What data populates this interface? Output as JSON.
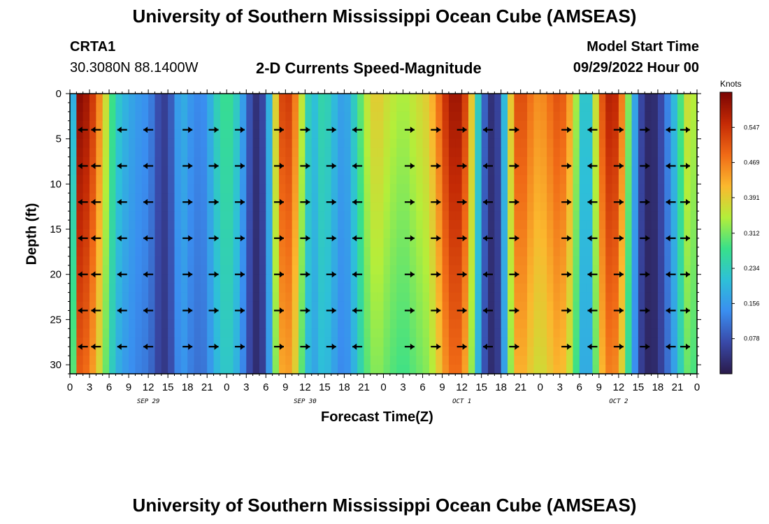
{
  "header": {
    "title": "University of Southern Mississippi Ocean Cube (AMSEAS)",
    "station_id": "CRTA1",
    "station_coords": "30.3080N  88.1400W",
    "plot_title": "2-D Currents Speed-Magnitude",
    "model_start_label": "Model Start Time",
    "model_start_value": "09/29/2022 Hour 00"
  },
  "footer": {
    "title": "University of Southern Mississippi Ocean Cube (AMSEAS)"
  },
  "colorbar": {
    "unit": "Knots",
    "ticks": [
      "0.547",
      "0.469",
      "0.391",
      "0.312",
      "0.234",
      "0.156",
      "0.078"
    ],
    "tick_values": [
      0.547,
      0.469,
      0.391,
      0.312,
      0.234,
      0.156,
      0.078
    ],
    "range": [
      0.0,
      0.625
    ],
    "colors": [
      "#2a1a4a",
      "#3949a8",
      "#3a8ef0",
      "#2ec0d8",
      "#38e08a",
      "#b4ee3a",
      "#fbb82e",
      "#f06a16",
      "#c42a05",
      "#7a0403"
    ]
  },
  "chart_data": {
    "type": "heatmap",
    "title": "2-D Currents Speed-Magnitude",
    "xlabel": "Forecast Time(Z)",
    "ylabel": "Depth (ft)",
    "xlim": [
      0,
      96
    ],
    "ylim": [
      31,
      0
    ],
    "x_tick_values": [
      0,
      3,
      6,
      9,
      12,
      15,
      18,
      21,
      24,
      27,
      30,
      33,
      36,
      39,
      42,
      45,
      48,
      51,
      54,
      57,
      60,
      63,
      66,
      69,
      72,
      75,
      78,
      81,
      84,
      87,
      90,
      93,
      96
    ],
    "x_tick_labels": [
      "0",
      "3",
      "6",
      "9",
      "12",
      "15",
      "18",
      "21",
      "0",
      "3",
      "6",
      "9",
      "12",
      "15",
      "18",
      "21",
      "0",
      "3",
      "6",
      "9",
      "12",
      "15",
      "18",
      "21",
      "0",
      "3",
      "6",
      "9",
      "12",
      "15",
      "18",
      "21",
      "0"
    ],
    "y_tick_values": [
      0,
      5,
      10,
      15,
      20,
      25,
      30
    ],
    "y_tick_labels": [
      "0",
      "5",
      "10",
      "15",
      "20",
      "25",
      "30"
    ],
    "day_labels": [
      {
        "text": "SEP 29",
        "x": 12
      },
      {
        "text": "SEP 30",
        "x": 36
      },
      {
        "text": "OCT 1",
        "x": 60
      },
      {
        "text": "OCT 2",
        "x": 84
      }
    ],
    "speed_profile_knots": {
      "hour": [
        0,
        1,
        2,
        3,
        4,
        5,
        6,
        7,
        8,
        9,
        10,
        11,
        12,
        13,
        14,
        15,
        16,
        17,
        18,
        19,
        20,
        21,
        22,
        23,
        24,
        25,
        26,
        27,
        28,
        29,
        30,
        31,
        32,
        33,
        34,
        35,
        36,
        37,
        38,
        39,
        40,
        41,
        42,
        43,
        44,
        45,
        46,
        47,
        48,
        49,
        50,
        51,
        52,
        53,
        54,
        55,
        56,
        57,
        58,
        59,
        60,
        61,
        62,
        63,
        64,
        65,
        66,
        67,
        68,
        69,
        70,
        71,
        72,
        73,
        74,
        75,
        76,
        77,
        78,
        79,
        80,
        81,
        82,
        83,
        84,
        85,
        86,
        87,
        88,
        89,
        90,
        91,
        92,
        93,
        94,
        95,
        96
      ],
      "speed": [
        0.1,
        0.62,
        0.6,
        0.58,
        0.5,
        0.42,
        0.32,
        0.24,
        0.2,
        0.18,
        0.16,
        0.15,
        0.14,
        0.1,
        0.05,
        0.06,
        0.12,
        0.2,
        0.16,
        0.14,
        0.13,
        0.15,
        0.22,
        0.26,
        0.28,
        0.26,
        0.2,
        0.12,
        0.04,
        0.03,
        0.1,
        0.28,
        0.5,
        0.55,
        0.52,
        0.42,
        0.3,
        0.18,
        0.24,
        0.26,
        0.22,
        0.18,
        0.15,
        0.2,
        0.26,
        0.34,
        0.38,
        0.4,
        0.38,
        0.36,
        0.35,
        0.34,
        0.35,
        0.37,
        0.38,
        0.4,
        0.45,
        0.52,
        0.58,
        0.6,
        0.58,
        0.48,
        0.32,
        0.14,
        0.05,
        0.02,
        0.1,
        0.3,
        0.5,
        0.53,
        0.5,
        0.46,
        0.45,
        0.47,
        0.5,
        0.52,
        0.48,
        0.4,
        0.28,
        0.16,
        0.28,
        0.46,
        0.56,
        0.58,
        0.54,
        0.4,
        0.24,
        0.1,
        0.03,
        0.02,
        0.04,
        0.1,
        0.16,
        0.24,
        0.34,
        0.4,
        0.3
      ],
      "surface_delta_depth_ft": 31
    },
    "vectors": {
      "depths_ft": [
        4,
        8,
        12,
        16,
        20,
        24,
        28
      ],
      "hours": [
        2,
        4,
        8,
        12,
        18,
        22,
        26,
        32,
        36,
        40,
        44,
        52,
        56,
        60,
        64,
        68,
        76,
        80,
        84,
        88,
        92,
        96
      ],
      "directions": [
        "W",
        "W",
        "W",
        "W",
        "E",
        "E",
        "E",
        "E",
        "E",
        "E",
        "W",
        "E",
        "E",
        "E",
        "W",
        "E",
        "E",
        "W",
        "E",
        "E",
        "W",
        "E"
      ]
    }
  }
}
